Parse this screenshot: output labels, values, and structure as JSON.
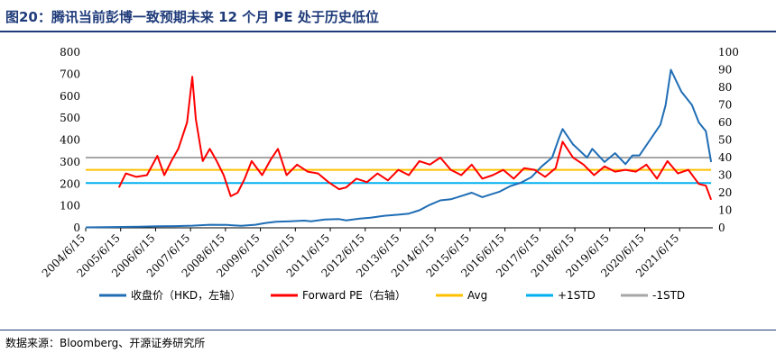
{
  "figure_title": "图20：腾讯当前彭博一致预期未来 12 个月 PE 处于历史低位",
  "source_note": "数据来源：Bloomberg、开源证券研究所",
  "colors": {
    "price": "#1f6db5",
    "pe": "#ff0000",
    "avg": "#ffc000",
    "plus1std": "#00b0f0",
    "minus1std": "#a6a6a6",
    "rule": "#1f3b7a"
  },
  "chart_data": {
    "type": "line",
    "x_tick_labels": [
      "2004/6/15",
      "2005/6/15",
      "2006/6/15",
      "2007/6/15",
      "2008/6/15",
      "2009/6/15",
      "2010/6/15",
      "2011/6/15",
      "2012/6/15",
      "2013/6/15",
      "2014/6/15",
      "2015/6/15",
      "2016/6/15",
      "2017/6/15",
      "2018/6/15",
      "2019/6/15",
      "2020/6/15",
      "2021/6/15"
    ],
    "x_range": [
      2004.45,
      2022.4
    ],
    "left_axis": {
      "label": "收盘价（HKD，左轴）",
      "ticks": [
        0,
        100,
        200,
        300,
        400,
        500,
        600,
        700,
        800
      ],
      "ylim": [
        0,
        800
      ]
    },
    "right_axis": {
      "label": "Forward PE（右轴）",
      "ticks": [
        0,
        10,
        20,
        30,
        40,
        50,
        60,
        70,
        80,
        90,
        100
      ],
      "ylim": [
        0,
        100
      ]
    },
    "series": [
      {
        "name": "收盘价（HKD，左轴）",
        "axis": "left",
        "color": "#1f6db5",
        "x": [
          2004.45,
          2005.0,
          2005.5,
          2006.0,
          2006.5,
          2007.0,
          2007.5,
          2008.0,
          2008.5,
          2008.9,
          2009.3,
          2009.6,
          2009.9,
          2010.3,
          2010.7,
          2010.9,
          2011.3,
          2011.7,
          2011.9,
          2012.3,
          2012.6,
          2013.0,
          2013.4,
          2013.7,
          2014.0,
          2014.3,
          2014.6,
          2014.9,
          2015.2,
          2015.5,
          2015.8,
          2016.0,
          2016.3,
          2016.6,
          2016.9,
          2017.2,
          2017.5,
          2017.8,
          2018.0,
          2018.1,
          2018.4,
          2018.8,
          2018.95,
          2019.3,
          2019.6,
          2019.9,
          2020.1,
          2020.3,
          2020.6,
          2020.9,
          2021.05,
          2021.2,
          2021.5,
          2021.8,
          2022.0,
          2022.2,
          2022.35
        ],
        "y": [
          2,
          3,
          4,
          5,
          7,
          8,
          10,
          14,
          13,
          9,
          14,
          22,
          28,
          30,
          33,
          30,
          38,
          40,
          34,
          42,
          46,
          55,
          60,
          65,
          80,
          105,
          125,
          130,
          145,
          160,
          140,
          150,
          165,
          190,
          205,
          230,
          280,
          320,
          410,
          450,
          380,
          320,
          360,
          300,
          340,
          290,
          330,
          330,
          400,
          470,
          560,
          720,
          620,
          560,
          480,
          440,
          300
        ]
      },
      {
        "name": "Forward PE（右轴）",
        "axis": "right",
        "color": "#ff0000",
        "x": [
          2005.4,
          2005.6,
          2005.9,
          2006.2,
          2006.5,
          2006.7,
          2006.9,
          2007.1,
          2007.35,
          2007.5,
          2007.6,
          2007.8,
          2008.0,
          2008.2,
          2008.4,
          2008.6,
          2008.8,
          2009.0,
          2009.2,
          2009.5,
          2009.75,
          2009.95,
          2010.2,
          2010.5,
          2010.8,
          2011.1,
          2011.4,
          2011.7,
          2011.9,
          2012.2,
          2012.5,
          2012.8,
          2013.1,
          2013.4,
          2013.7,
          2014.0,
          2014.3,
          2014.6,
          2014.9,
          2015.2,
          2015.5,
          2015.8,
          2016.1,
          2016.4,
          2016.7,
          2017.0,
          2017.3,
          2017.6,
          2017.9,
          2018.1,
          2018.4,
          2018.7,
          2019.0,
          2019.3,
          2019.6,
          2019.9,
          2020.2,
          2020.5,
          2020.8,
          2021.1,
          2021.4,
          2021.7,
          2022.0,
          2022.2,
          2022.35
        ],
        "y": [
          23,
          31,
          29,
          30,
          41,
          30,
          38,
          45,
          60,
          86,
          62,
          38,
          45,
          38,
          30,
          18,
          20,
          28,
          38,
          30,
          39,
          45,
          30,
          36,
          32,
          31,
          26,
          22,
          23,
          28,
          26,
          31,
          27,
          33,
          30,
          38,
          36,
          40,
          33,
          30,
          36,
          28,
          30,
          33,
          28,
          34,
          33,
          29,
          34,
          49,
          40,
          36,
          30,
          35,
          32,
          33,
          32,
          36,
          28,
          38,
          31,
          33,
          25,
          24,
          16
        ]
      },
      {
        "name": "Avg",
        "axis": "right",
        "color": "#ffc000",
        "x": [
          2004.45,
          2022.35
        ],
        "y": [
          33,
          33
        ]
      },
      {
        "name": "+1STD",
        "axis": "right",
        "color": "#00b0f0",
        "x": [
          2004.45,
          2022.35
        ],
        "y": [
          25.5,
          25.5
        ]
      },
      {
        "name": "-1STD",
        "axis": "right",
        "color": "#a6a6a6",
        "x": [
          2004.45,
          2022.35
        ],
        "y": [
          40,
          40
        ]
      }
    ],
    "legend_position": "bottom"
  }
}
